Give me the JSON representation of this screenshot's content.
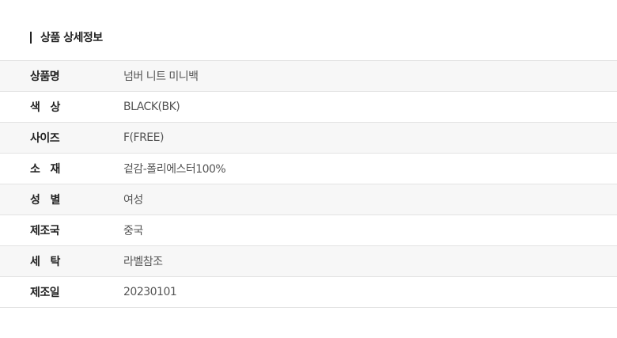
{
  "section": {
    "title": "상품 상세정보"
  },
  "rows": [
    {
      "label": "상품명",
      "value": "넘버 니트 미니백"
    },
    {
      "label": "색   상",
      "value": "BLACK(BK)"
    },
    {
      "label": "사이즈",
      "value": "F(FREE)"
    },
    {
      "label": "소   재",
      "value": "겉감-폴리에스터100%"
    },
    {
      "label": "성   별",
      "value": "여성"
    },
    {
      "label": "제조국",
      "value": "중국"
    },
    {
      "label": "세   탁",
      "value": "라벨참조"
    },
    {
      "label": "제조일",
      "value": "20230101"
    }
  ],
  "colors": {
    "row_alt": "#f7f7f7",
    "border": "#e3e3e3",
    "label": "#222222",
    "value": "#555555"
  }
}
